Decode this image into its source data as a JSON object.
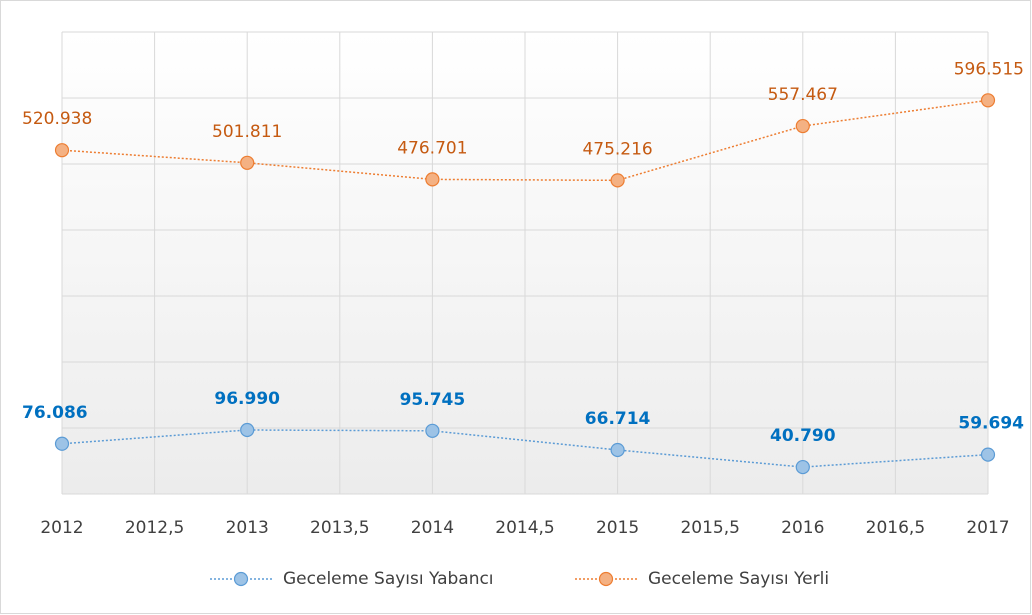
{
  "chart_data": {
    "type": "line",
    "x": [
      2012,
      2013,
      2014,
      2015,
      2016,
      2017
    ],
    "series": [
      {
        "name": "Geceleme Sayısı Yabancı",
        "color": "#5b9bd5",
        "marker_fill": "#9dc3e6",
        "label_color": "#0070c0",
        "values": [
          76086,
          96990,
          95745,
          66714,
          40790,
          59694
        ],
        "value_labels": [
          "76.086",
          "96.990",
          "95.745",
          "66.714",
          "40.790",
          "59.694"
        ]
      },
      {
        "name": "Geceleme Sayısı Yerli",
        "color": "#ed7d31",
        "marker_fill": "#f4b183",
        "label_color": "#c55a11",
        "values": [
          520938,
          501811,
          476701,
          475216,
          557467,
          596515
        ],
        "value_labels": [
          "520.938",
          "501.811",
          "476.701",
          "475.216",
          "557.467",
          "596.515"
        ]
      }
    ],
    "xlim": [
      2012,
      2017
    ],
    "xticks": [
      2012,
      {
        "value": 2012.5,
        "label": "2012,5"
      },
      2013,
      {
        "value": 2013.5,
        "label": "2013,5"
      },
      2014,
      {
        "value": 2014.5,
        "label": "2014,5"
      },
      2015,
      {
        "value": 2015.5,
        "label": "2015,5"
      },
      2016,
      {
        "value": 2016.5,
        "label": "2016,5"
      },
      2017
    ],
    "ylim": [
      0,
      700000
    ],
    "yticks": [
      0,
      100000,
      200000,
      300000,
      400000,
      500000,
      600000,
      700000
    ],
    "grid": true,
    "legend": "bottom"
  }
}
